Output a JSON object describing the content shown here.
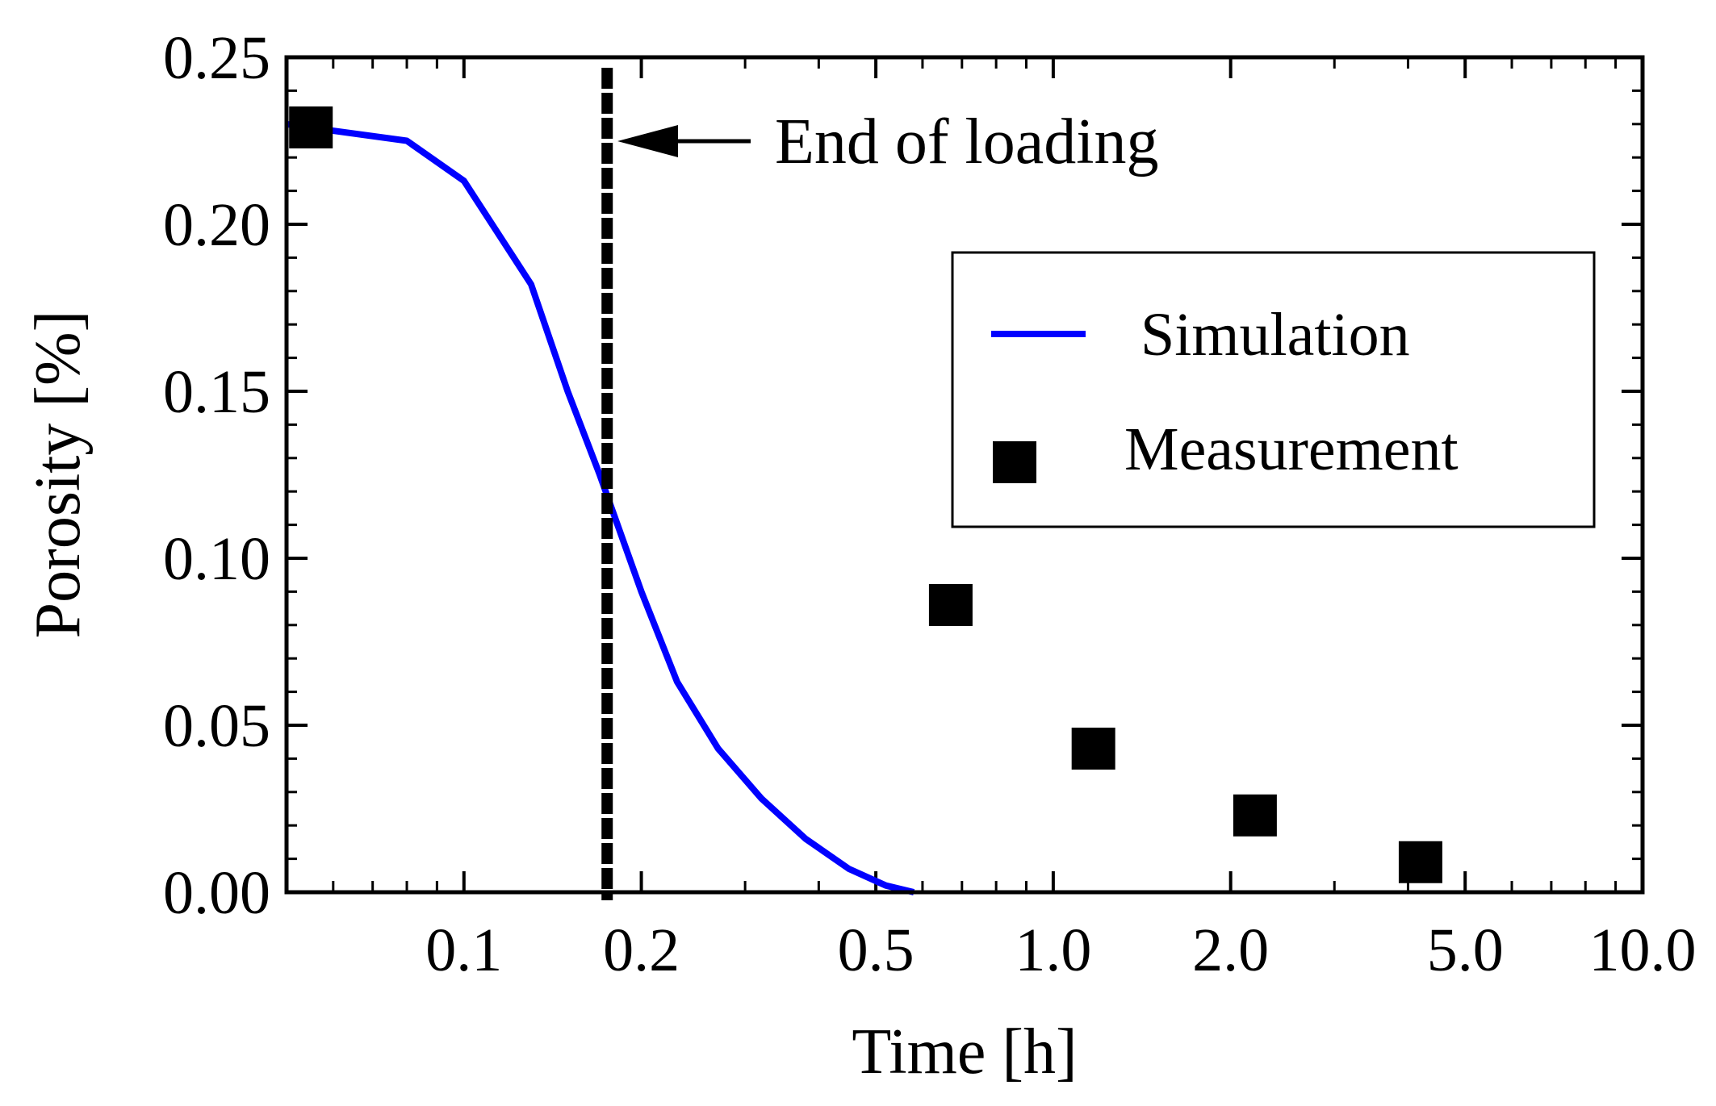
{
  "chart_data": {
    "type": "scatter",
    "title": "",
    "xlabel": "Time [h]",
    "ylabel": "Porosity [%]",
    "xscale": "log",
    "xlim": [
      0.05,
      10.0
    ],
    "ylim": [
      0.0,
      0.25
    ],
    "x_ticks": [
      {
        "value": 0.1,
        "label": "0.1"
      },
      {
        "value": 0.2,
        "label": "0.2"
      },
      {
        "value": 0.5,
        "label": "0.5"
      },
      {
        "value": 1.0,
        "label": "1.0"
      },
      {
        "value": 2.0,
        "label": "2.0"
      },
      {
        "value": 5.0,
        "label": "5.0"
      },
      {
        "value": 10.0,
        "label": "10.0"
      }
    ],
    "x_minor_ticks": [
      0.06,
      0.07,
      0.08,
      0.09,
      0.3,
      0.4,
      0.6,
      0.7,
      0.8,
      0.9,
      3,
      4,
      6,
      7,
      8,
      9
    ],
    "y_ticks": [
      {
        "value": 0.0,
        "label": "0.00"
      },
      {
        "value": 0.05,
        "label": "0.05"
      },
      {
        "value": 0.1,
        "label": "0.10"
      },
      {
        "value": 0.15,
        "label": "0.15"
      },
      {
        "value": 0.2,
        "label": "0.20"
      },
      {
        "value": 0.25,
        "label": "0.25"
      }
    ],
    "y_minor_step": 0.01,
    "series": [
      {
        "name": "Simulation",
        "kind": "line",
        "color": "#0000ff",
        "x": [
          0.05,
          0.06,
          0.08,
          0.1,
          0.13,
          0.15,
          0.17,
          0.2,
          0.23,
          0.27,
          0.32,
          0.38,
          0.45,
          0.52,
          0.58
        ],
        "y": [
          0.23,
          0.228,
          0.225,
          0.213,
          0.182,
          0.15,
          0.125,
          0.09,
          0.063,
          0.043,
          0.028,
          0.016,
          0.007,
          0.002,
          0.0
        ]
      },
      {
        "name": "Measurement",
        "kind": "scatter",
        "marker": "square",
        "color": "#000000",
        "x": [
          0.055,
          0.67,
          1.17,
          2.2,
          4.2
        ],
        "y": [
          0.229,
          0.086,
          0.043,
          0.023,
          0.009
        ]
      }
    ],
    "vline": {
      "x": 0.175,
      "style": "dashed",
      "color": "#000000"
    },
    "annotation": {
      "text": "End of loading",
      "arrow_to_x": 0.175,
      "y": 0.227
    },
    "legend": {
      "position": "right",
      "entries": [
        "Simulation",
        "Measurement"
      ]
    }
  }
}
